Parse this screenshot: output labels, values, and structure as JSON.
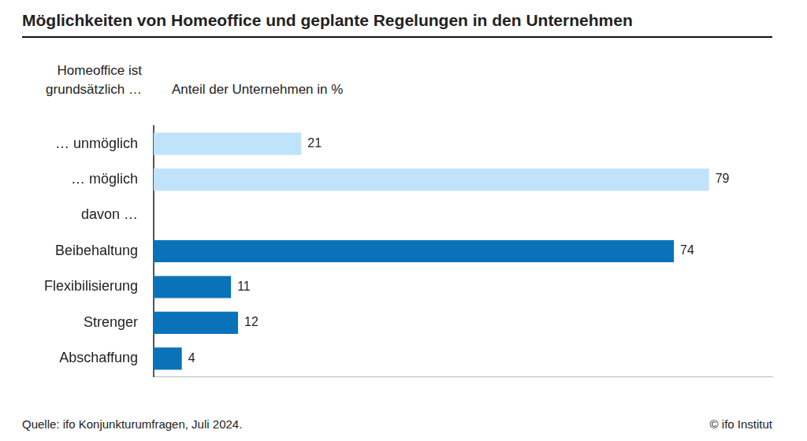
{
  "chart_data": {
    "type": "bar",
    "orientation": "horizontal",
    "title": "Möglichkeiten von Homeoffice und geplante Regelungen in den Unternehmen",
    "ylabel": "Homeoffice ist grundsätzlich …",
    "xlabel": "Anteil der Unternehmen in %",
    "source": "Quelle: ifo Konjunkturumfragen, Juli 2024.",
    "credit": "© ifo Institut",
    "categories": [
      "… unmöglich",
      "… möglich",
      "davon …",
      "Beibehaltung",
      "Flexibilisierung",
      "Strenger",
      "Abschaffung"
    ],
    "values": [
      21,
      79,
      null,
      74,
      11,
      12,
      4
    ],
    "colors": [
      "#bfe3fa",
      "#bfe3fa",
      "#0a72b8",
      "#0a72b8",
      "#0a72b8",
      "#0a72b8",
      "#0a72b8"
    ],
    "xlim": [
      0,
      88
    ],
    "grid": false,
    "data_labels": true,
    "tick_labels": "y"
  }
}
